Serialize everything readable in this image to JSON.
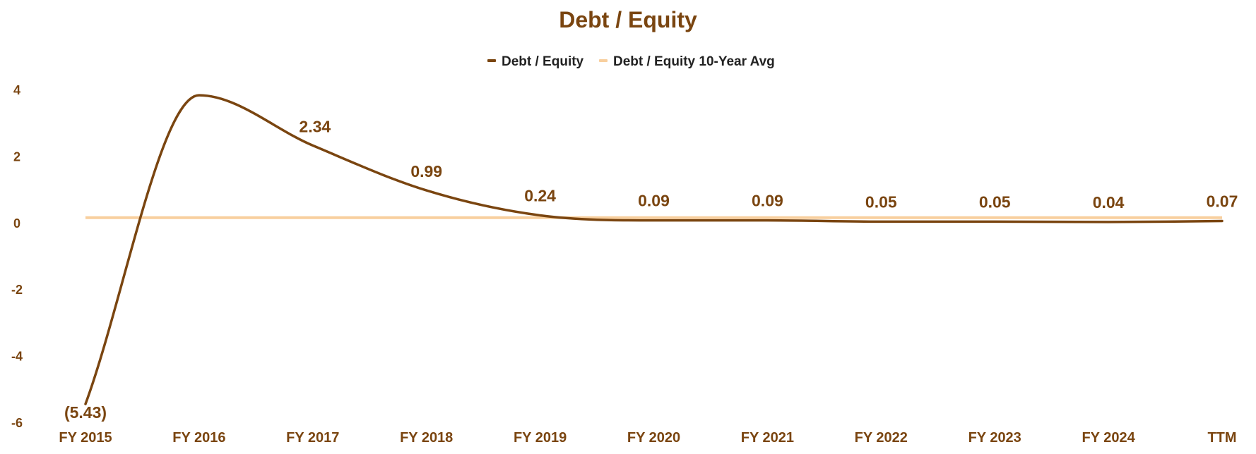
{
  "chart_data": {
    "type": "line",
    "title": "Debt / Equity",
    "categories": [
      "FY 2015",
      "FY 2016",
      "FY 2017",
      "FY 2018",
      "FY 2019",
      "FY 2020",
      "FY 2021",
      "FY 2022",
      "FY 2023",
      "FY 2024",
      "TTM"
    ],
    "series": [
      {
        "name": "Debt / Equity",
        "color": "#7a4510",
        "values": [
          -5.43,
          3.85,
          2.34,
          0.99,
          0.24,
          0.09,
          0.09,
          0.05,
          0.05,
          0.04,
          0.07
        ],
        "data_labels": [
          "(5.43)",
          "",
          "2.34",
          "0.99",
          "0.24",
          "0.09",
          "0.09",
          "0.05",
          "0.05",
          "0.04",
          "0.07"
        ]
      },
      {
        "name": "Debt / Equity 10-Year Avg",
        "color": "#f8cf9e",
        "values": [
          0.17,
          0.17,
          0.17,
          0.17,
          0.17,
          0.17,
          0.17,
          0.17,
          0.17,
          0.17,
          0.17
        ]
      }
    ],
    "y_ticks": [
      "4",
      "2",
      "0",
      "-2",
      "-4",
      "-6"
    ],
    "ylim": [
      -6,
      4
    ],
    "grid": false,
    "legend_position": "top-center",
    "text_color": "#7a4510"
  }
}
